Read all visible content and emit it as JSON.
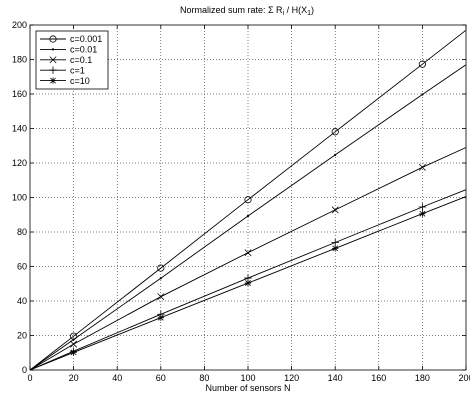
{
  "chart_data": {
    "type": "line",
    "title": {
      "prefix": "Normalized sum rate: Σ R",
      "sub1": "i",
      "mid": " / H(X",
      "sub2": "1",
      "suffix": ")"
    },
    "xlabel": "Number of sensors N",
    "ylabel": "",
    "xlim": [
      0,
      200
    ],
    "ylim": [
      0,
      200
    ],
    "xticks": [
      0,
      20,
      40,
      60,
      80,
      100,
      120,
      140,
      160,
      180,
      200
    ],
    "yticks": [
      0,
      20,
      40,
      60,
      80,
      100,
      120,
      140,
      160,
      180,
      200
    ],
    "grid": true,
    "legend": "top-left",
    "x_markers": [
      20,
      60,
      100,
      140,
      180
    ],
    "series": [
      {
        "name": "c=0.001",
        "marker": "circle",
        "x": [
          0,
          20,
          60,
          100,
          140,
          180,
          200
        ],
        "values": [
          0,
          19.6,
          59.1,
          98.7,
          138.1,
          177.3,
          197.0
        ]
      },
      {
        "name": "c=0.01",
        "marker": "dot",
        "x": [
          0,
          20,
          60,
          100,
          140,
          180,
          200
        ],
        "values": [
          0,
          17.7,
          53.2,
          89.3,
          124.7,
          159.7,
          177.0
        ]
      },
      {
        "name": "c=0.1",
        "marker": "x",
        "x": [
          0,
          20,
          60,
          100,
          140,
          180,
          200
        ],
        "values": [
          0,
          15.0,
          42.5,
          68.0,
          92.8,
          117.5,
          129.0
        ]
      },
      {
        "name": "c=1",
        "marker": "plus",
        "x": [
          0,
          20,
          60,
          100,
          140,
          180,
          200
        ],
        "values": [
          0,
          10.9,
          32.3,
          53.3,
          73.9,
          94.5,
          104.5
        ]
      },
      {
        "name": "c=10",
        "marker": "star",
        "x": [
          0,
          20,
          60,
          100,
          140,
          180,
          200
        ],
        "values": [
          0,
          10.2,
          30.3,
          50.4,
          70.5,
          90.6,
          100.5
        ]
      }
    ]
  }
}
